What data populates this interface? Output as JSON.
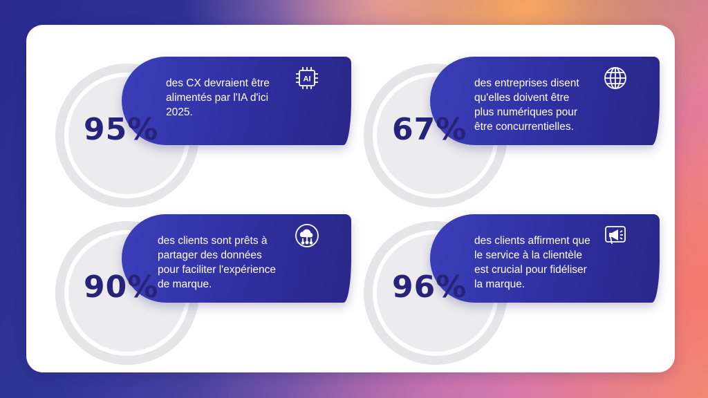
{
  "stats": [
    {
      "percent": "95%",
      "text": "des CX devraient être alimentés par l'IA d'ici 2025.",
      "icon": "ai-chip-icon",
      "icon_label": "AI"
    },
    {
      "percent": "67%",
      "text": "des entreprises disent qu'elles doivent être plus numériques pour être concurrentielles.",
      "icon": "globe-icon"
    },
    {
      "percent": "90%",
      "text": "des clients sont prêts à partager des données pour faciliter l'expérience de marque.",
      "icon": "cloud-network-icon"
    },
    {
      "percent": "96%",
      "text": "des clients affirment que le service à la clientèle est crucial pour fidéliser la marque.",
      "icon": "megaphone-icon"
    }
  ],
  "colors": {
    "pill": "#2e2fa0",
    "percent": "#27237a",
    "ring": "#e6e6e8"
  }
}
